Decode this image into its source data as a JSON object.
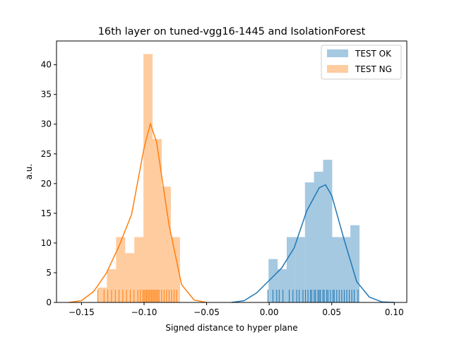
{
  "chart_data": {
    "type": "histogram",
    "title": "16th layer on tuned-vgg16-1445 and IsolationForest",
    "xlabel": "Signed distance to hyper plane",
    "ylabel": "a.u.",
    "xlim": [
      -0.17,
      0.11
    ],
    "ylim": [
      0,
      44.0
    ],
    "xticks": [
      -0.15,
      -0.1,
      -0.05,
      0.0,
      0.05,
      0.1
    ],
    "xtick_labels": [
      "−0.15",
      "−0.10",
      "−0.05",
      "0.00",
      "0.05",
      "0.10"
    ],
    "yticks": [
      0,
      5,
      10,
      15,
      20,
      25,
      30,
      35,
      40
    ],
    "ytick_labels": [
      "0",
      "5",
      "10",
      "15",
      "20",
      "25",
      "30",
      "35",
      "40"
    ],
    "legend_position": "top-right",
    "grid": false,
    "series": [
      {
        "name": "TEST OK",
        "color": "#1f77b4",
        "hist_bins": [
          {
            "x0": -0.0005,
            "x1": 0.0068,
            "height": 7.3
          },
          {
            "x0": 0.0068,
            "x1": 0.014,
            "height": 5.6
          },
          {
            "x0": 0.014,
            "x1": 0.0213,
            "height": 11.0
          },
          {
            "x0": 0.0213,
            "x1": 0.0286,
            "height": 11.0
          },
          {
            "x0": 0.0286,
            "x1": 0.0358,
            "height": 20.2
          },
          {
            "x0": 0.0358,
            "x1": 0.0431,
            "height": 22.0
          },
          {
            "x0": 0.0431,
            "x1": 0.0504,
            "height": 24.0
          },
          {
            "x0": 0.0504,
            "x1": 0.0577,
            "height": 11.0
          },
          {
            "x0": 0.0577,
            "x1": 0.0649,
            "height": 11.0
          },
          {
            "x0": 0.0649,
            "x1": 0.0722,
            "height": 13.0
          }
        ],
        "kde": [
          [
            -0.03,
            0.0
          ],
          [
            -0.02,
            0.3
          ],
          [
            -0.01,
            1.6
          ],
          [
            0.0,
            3.7
          ],
          [
            0.01,
            5.8
          ],
          [
            0.02,
            9.2
          ],
          [
            0.03,
            15.4
          ],
          [
            0.04,
            19.3
          ],
          [
            0.045,
            19.8
          ],
          [
            0.05,
            18.0
          ],
          [
            0.06,
            10.5
          ],
          [
            0.07,
            3.5
          ],
          [
            0.08,
            0.9
          ],
          [
            0.09,
            0.1
          ],
          [
            0.1,
            0.0
          ]
        ],
        "rug": [
          -0.001,
          0.003,
          0.006,
          0.008,
          0.011,
          0.016,
          0.019,
          0.022,
          0.024,
          0.027,
          0.029,
          0.031,
          0.033,
          0.034,
          0.036,
          0.037,
          0.039,
          0.04,
          0.041,
          0.043,
          0.044,
          0.046,
          0.047,
          0.049,
          0.051,
          0.052,
          0.054,
          0.056,
          0.058,
          0.06,
          0.062,
          0.064,
          0.066,
          0.068,
          0.071
        ]
      },
      {
        "name": "TEST NG",
        "color": "#ff7f0e",
        "hist_bins": [
          {
            "x0": -0.137,
            "x1": -0.1297,
            "height": 2.5
          },
          {
            "x0": -0.1297,
            "x1": -0.1224,
            "height": 5.6
          },
          {
            "x0": -0.1224,
            "x1": -0.1151,
            "height": 11.0
          },
          {
            "x0": -0.1151,
            "x1": -0.1078,
            "height": 8.3
          },
          {
            "x0": -0.1078,
            "x1": -0.1005,
            "height": 11.0
          },
          {
            "x0": -0.1005,
            "x1": -0.0932,
            "height": 41.8
          },
          {
            "x0": -0.0932,
            "x1": -0.0859,
            "height": 27.5
          },
          {
            "x0": -0.0859,
            "x1": -0.0786,
            "height": 19.5
          },
          {
            "x0": -0.0786,
            "x1": -0.0713,
            "height": 11.0
          }
        ],
        "kde": [
          [
            -0.16,
            0.0
          ],
          [
            -0.15,
            0.3
          ],
          [
            -0.14,
            1.9
          ],
          [
            -0.13,
            5.0
          ],
          [
            -0.12,
            9.5
          ],
          [
            -0.11,
            14.8
          ],
          [
            -0.1,
            26.0
          ],
          [
            -0.095,
            30.1
          ],
          [
            -0.09,
            27.0
          ],
          [
            -0.08,
            13.0
          ],
          [
            -0.07,
            3.0
          ],
          [
            -0.06,
            0.4
          ],
          [
            -0.05,
            0.0
          ]
        ],
        "rug": [
          -0.137,
          -0.132,
          -0.129,
          -0.126,
          -0.123,
          -0.12,
          -0.117,
          -0.114,
          -0.111,
          -0.108,
          -0.105,
          -0.103,
          -0.101,
          -0.1,
          -0.099,
          -0.098,
          -0.097,
          -0.096,
          -0.095,
          -0.094,
          -0.093,
          -0.092,
          -0.091,
          -0.09,
          -0.089,
          -0.088,
          -0.086,
          -0.084,
          -0.082,
          -0.08,
          -0.078,
          -0.076,
          -0.074
        ]
      }
    ]
  }
}
